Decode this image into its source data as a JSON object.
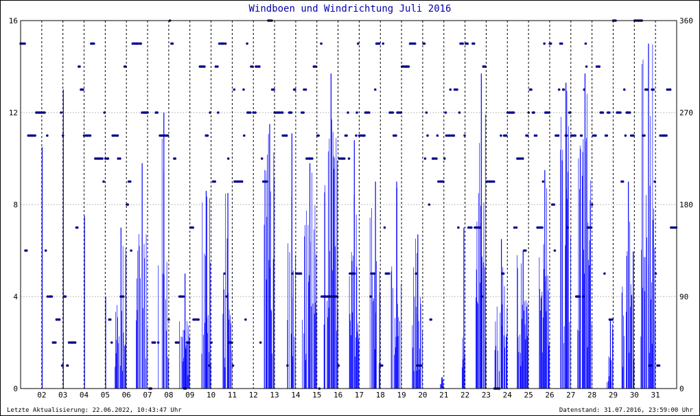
{
  "title": "Windboen und Windrichtung Juli 2016",
  "footer": {
    "left": "Letzte Aktualisierung: 22.06.2022, 10:43:47 Uhr",
    "right": "Datenstand: 31.07.2016, 23:59:00 Uhr"
  },
  "colors": {
    "series": "#0000ff",
    "direction": "#00008b",
    "grid": "#bbbbbb",
    "day_line": "#000000"
  },
  "chart_data": {
    "type": "bar",
    "title": "Windboen und Windrichtung Juli 2016",
    "x_ticks": [
      "02",
      "03",
      "04",
      "05",
      "06",
      "07",
      "08",
      "09",
      "10",
      "11",
      "12",
      "13",
      "14",
      "15",
      "16",
      "17",
      "18",
      "19",
      "20",
      "21",
      "22",
      "23",
      "24",
      "25",
      "26",
      "27",
      "28",
      "29",
      "30",
      "31"
    ],
    "x_days": 31,
    "ylim_left": [
      0,
      16
    ],
    "yticks_left": [
      0,
      4,
      8,
      12,
      16
    ],
    "ylim_right": [
      0,
      360
    ],
    "yticks_right": [
      0,
      90,
      180,
      270,
      360
    ],
    "grid": true,
    "series": [
      {
        "type": "bar",
        "daily_max": [
          10.5,
          13,
          7.5,
          4,
          7,
          9.8,
          12,
          5,
          8.6,
          8.5,
          0,
          11.5,
          11.1,
          9.8,
          13.7,
          10.8,
          9,
          9,
          6.7,
          0.5,
          7,
          13.7,
          6.5,
          6,
          9.5,
          13.3,
          13.7,
          3,
          9,
          15
        ],
        "daily_typ": [
          5,
          6,
          3,
          3,
          4,
          8,
          7,
          3,
          6,
          5,
          0,
          9,
          7,
          8,
          12,
          8,
          6,
          6,
          4,
          0.3,
          3,
          9,
          5,
          4,
          7,
          10,
          11,
          1.5,
          6,
          10
        ],
        "active_from_day": [
          1,
          1,
          1,
          1,
          0.45,
          0.45,
          0.5,
          0.5,
          0.5,
          0.55,
          1,
          0.5,
          0.6,
          0.3,
          0.3,
          0.5,
          0.5,
          0.5,
          0.5,
          0.8,
          0.85,
          0.5,
          0.4,
          0.45,
          0.5,
          0.5,
          0.3,
          0.7,
          0.4,
          0.3
        ]
      },
      {
        "type": "scatter",
        "direction_bands": [
          270,
          247.5,
          292.5,
          225,
          315,
          337.5,
          360,
          202.5,
          180,
          157.5,
          22.5,
          45,
          67.5,
          90,
          112.5,
          135,
          0
        ],
        "direction_weights": [
          12,
          10,
          6,
          5,
          5,
          4,
          3,
          3,
          2,
          2,
          2,
          2,
          2,
          2,
          2,
          2,
          1
        ]
      }
    ]
  }
}
